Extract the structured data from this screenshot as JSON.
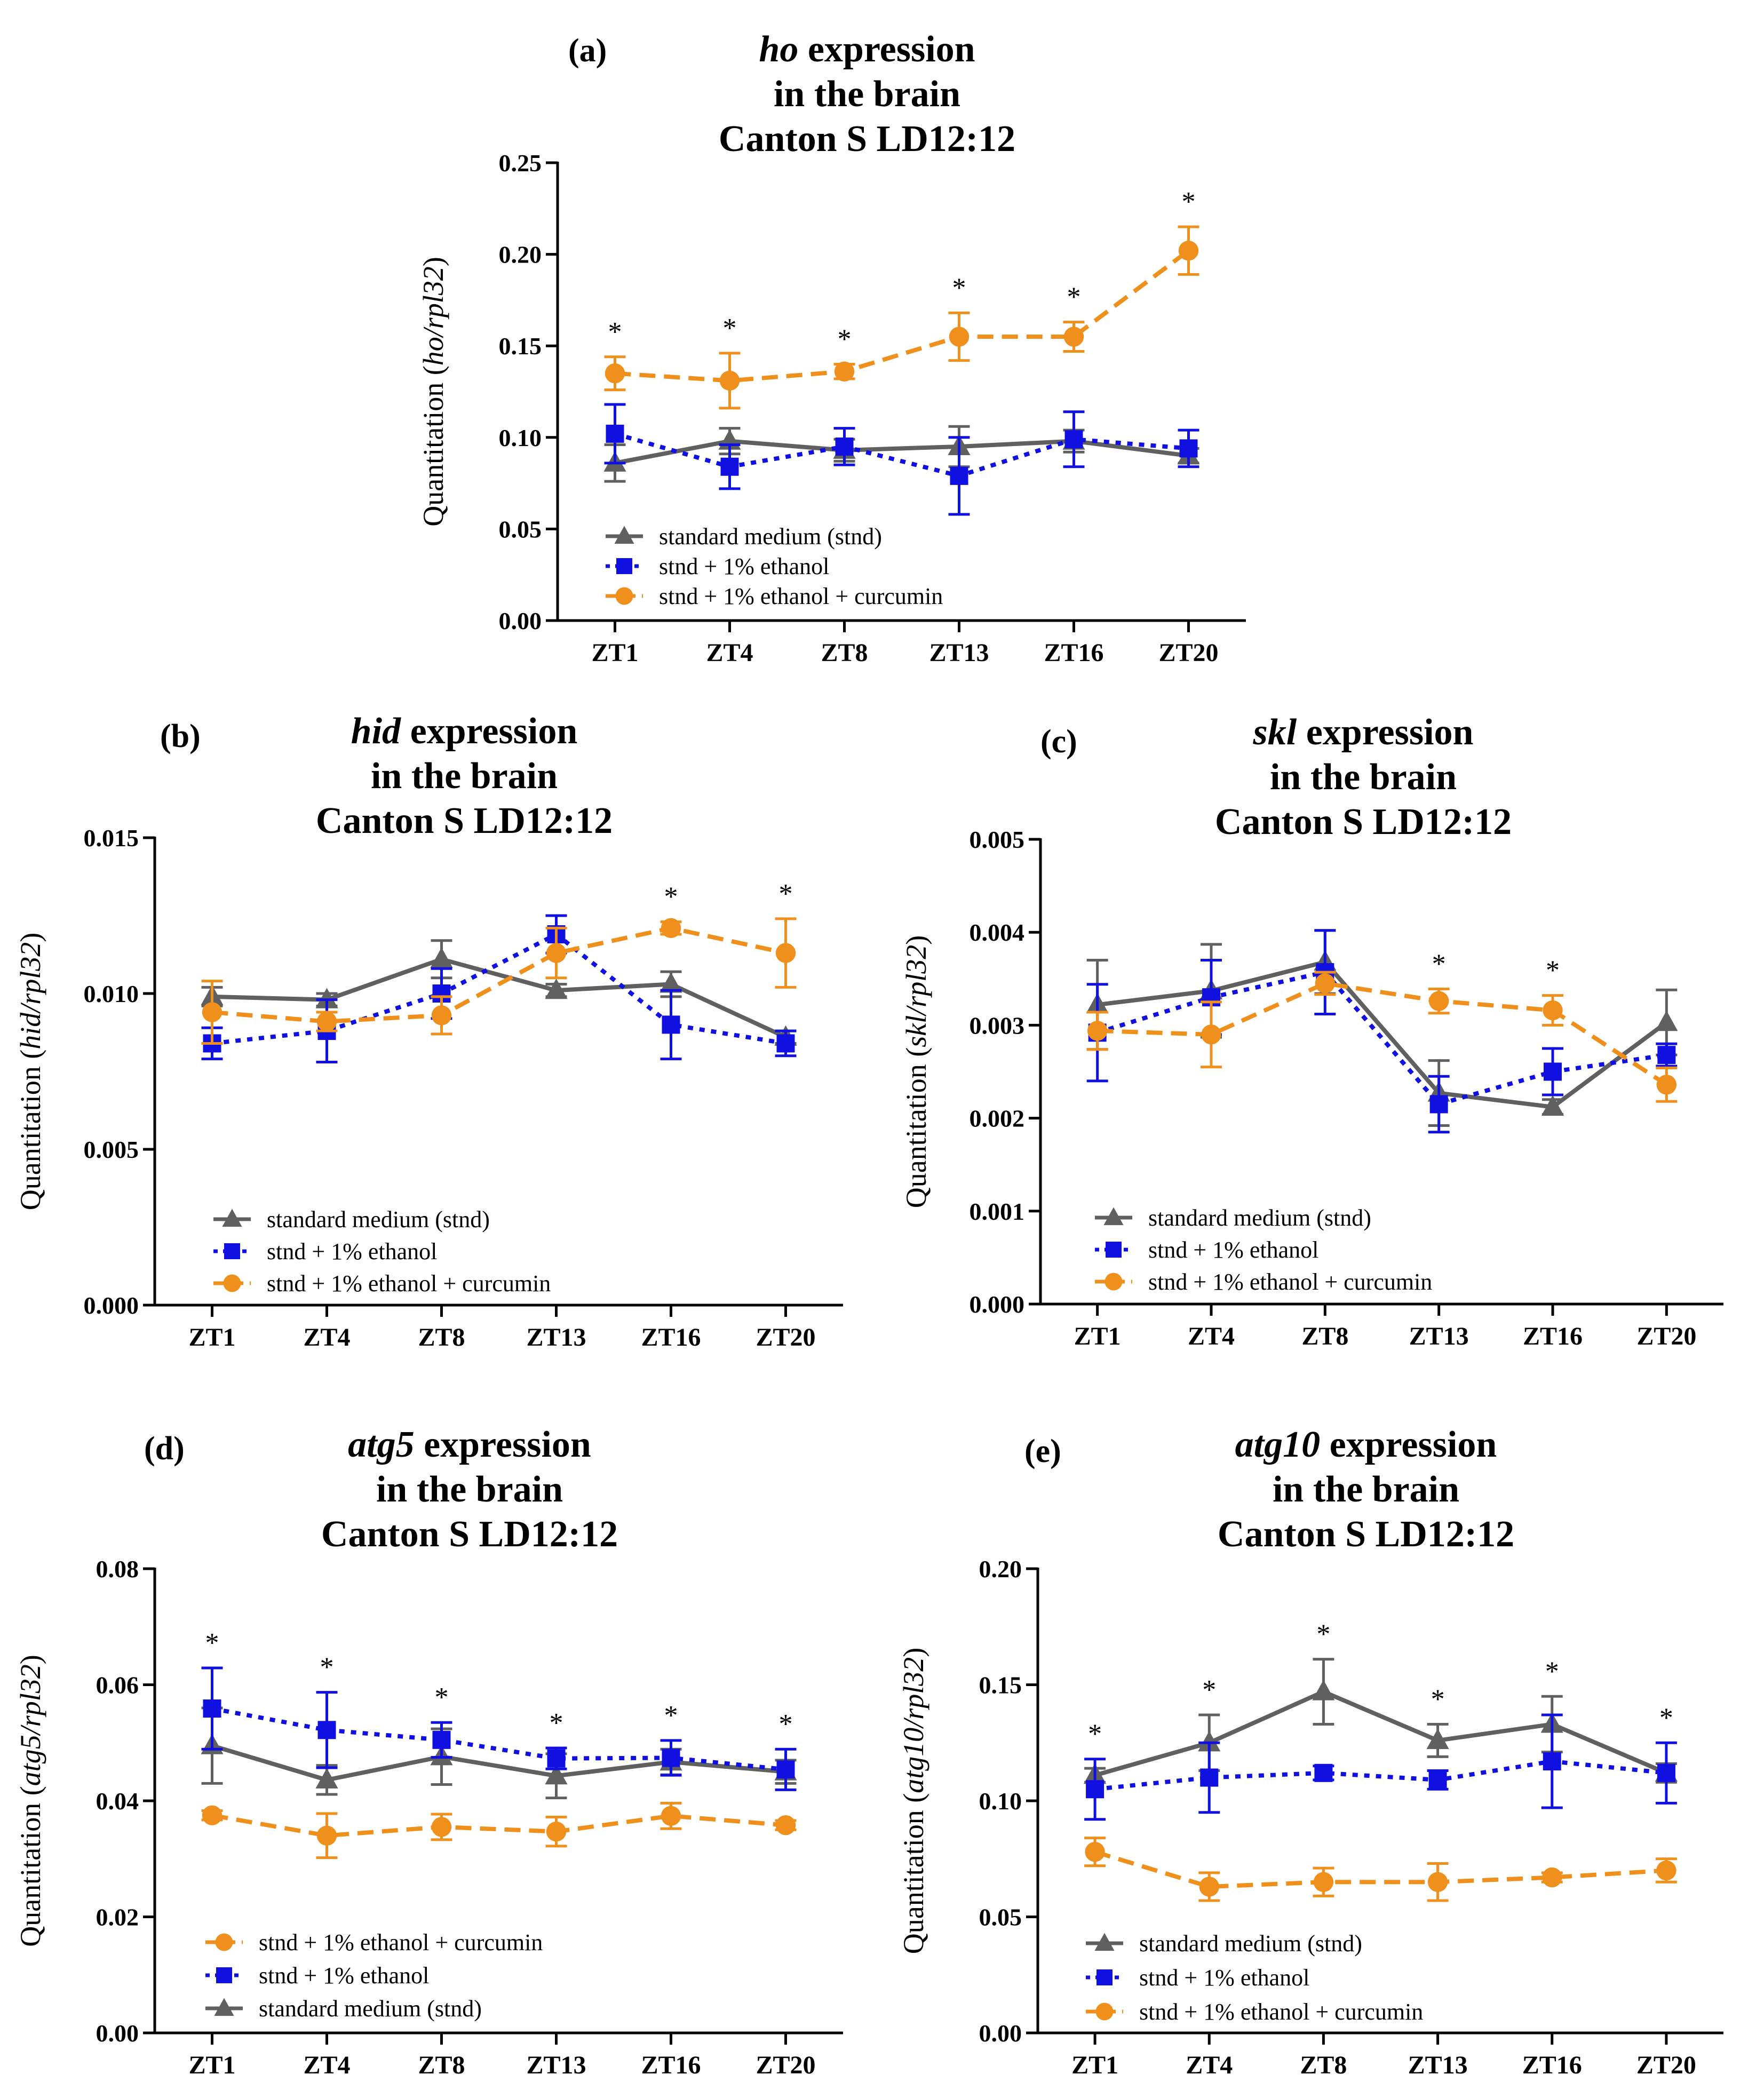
{
  "figure": {
    "x_categories": [
      "ZT1",
      "ZT4",
      "ZT8",
      "ZT13",
      "ZT16",
      "ZT20"
    ],
    "series_styles": {
      "stnd": {
        "color": "#606060",
        "marker": "triangle",
        "dash": "solid"
      },
      "ethanol": {
        "color": "#1010e0",
        "marker": "square",
        "dash": "dotted"
      },
      "curcumin": {
        "color": "#f0901c",
        "marker": "circle",
        "dash": "dashed"
      }
    }
  },
  "chart_data": [
    {
      "panel": "(a)",
      "type": "line",
      "title": {
        "gene": "ho",
        "rest1": " expression",
        "line2": "in the brain",
        "line3": "Canton S LD12:12"
      },
      "ylabel": {
        "pre": "Quantitation (",
        "gene": "ho/rpl32",
        "post": ")"
      },
      "ylim": [
        0,
        0.25
      ],
      "yticks": [
        "0.00",
        "0.05",
        "0.10",
        "0.15",
        "0.20",
        "0.25"
      ],
      "ytick_values": [
        0,
        0.05,
        0.1,
        0.15,
        0.2,
        0.25
      ],
      "categories": [
        "ZT1",
        "ZT4",
        "ZT8",
        "ZT13",
        "ZT16",
        "ZT20"
      ],
      "significance": [
        "*",
        "*",
        "*",
        "*",
        "*",
        "*"
      ],
      "legend": [
        "standard medium (stnd)",
        "stnd + 1% ethanol",
        "stnd + 1% ethanol + curcumin"
      ],
      "legend_order": [
        "stnd",
        "ethanol",
        "curcumin"
      ],
      "series": [
        {
          "key": "stnd",
          "name": "standard medium (stnd)",
          "values": [
            0.086,
            0.098,
            0.093,
            0.095,
            0.098,
            0.09
          ],
          "errors": [
            0.01,
            0.007,
            0.006,
            0.011,
            0.006,
            0.004
          ]
        },
        {
          "key": "ethanol",
          "name": "stnd + 1% ethanol",
          "values": [
            0.102,
            0.084,
            0.095,
            0.079,
            0.099,
            0.094
          ],
          "errors": [
            0.016,
            0.012,
            0.01,
            0.021,
            0.015,
            0.01
          ]
        },
        {
          "key": "curcumin",
          "name": "stnd + 1% ethanol + curcumin",
          "values": [
            0.135,
            0.131,
            0.136,
            0.155,
            0.155,
            0.202
          ],
          "errors": [
            0.009,
            0.015,
            0.004,
            0.013,
            0.008,
            0.013
          ]
        }
      ]
    },
    {
      "panel": "(b)",
      "type": "line",
      "title": {
        "gene": "hid",
        "rest1": " expression",
        "line2": "in the brain",
        "line3": "Canton S LD12:12"
      },
      "ylabel": {
        "pre": "Quantitation (",
        "gene": "hid/rpl32",
        "post": ")"
      },
      "ylim": [
        0,
        0.015
      ],
      "yticks": [
        "0.000",
        "0.005",
        "0.010",
        "0.015"
      ],
      "ytick_values": [
        0,
        0.005,
        0.01,
        0.015
      ],
      "categories": [
        "ZT1",
        "ZT4",
        "ZT8",
        "ZT13",
        "ZT16",
        "ZT20"
      ],
      "significance": [
        "",
        "",
        "",
        "",
        "*",
        "*"
      ],
      "legend": [
        "standard medium (stnd)",
        "stnd + 1% ethanol",
        "stnd + 1% ethanol + curcumin"
      ],
      "legend_order": [
        "stnd",
        "ethanol",
        "curcumin"
      ],
      "series": [
        {
          "key": "stnd",
          "name": "standard medium (stnd)",
          "values": [
            0.0099,
            0.0098,
            0.0111,
            0.0101,
            0.0103,
            0.0086
          ],
          "errors": [
            0.0003,
            0.0002,
            0.0006,
            0.0002,
            0.0004,
            0.0002
          ]
        },
        {
          "key": "ethanol",
          "name": "stnd + 1% ethanol",
          "values": [
            0.0084,
            0.0088,
            0.01,
            0.0119,
            0.009,
            0.0084
          ],
          "errors": [
            0.0005,
            0.001,
            0.0008,
            0.0006,
            0.0011,
            0.0004
          ]
        },
        {
          "key": "curcumin",
          "name": "stnd + 1% ethanol + curcumin",
          "values": [
            0.0094,
            0.0091,
            0.0093,
            0.0113,
            0.0121,
            0.0113
          ],
          "errors": [
            0.001,
            0.0003,
            0.0006,
            0.0008,
            0.0002,
            0.0011
          ]
        }
      ]
    },
    {
      "panel": "(c)",
      "type": "line",
      "title": {
        "gene": "skl",
        "rest1": " expression",
        "line2": "in the brain",
        "line3": "Canton S LD12:12"
      },
      "ylabel": {
        "pre": "Quantitation (",
        "gene": "skl/rpl32",
        "post": ")"
      },
      "ylim": [
        0,
        0.005
      ],
      "yticks": [
        "0.000",
        "0.001",
        "0.002",
        "0.003",
        "0.004",
        "0.005"
      ],
      "ytick_values": [
        0,
        0.001,
        0.002,
        0.003,
        0.004,
        0.005
      ],
      "categories": [
        "ZT1",
        "ZT4",
        "ZT8",
        "ZT13",
        "ZT16",
        "ZT20"
      ],
      "significance": [
        "",
        "",
        "",
        "*",
        "*",
        ""
      ],
      "legend": [
        "standard medium (stnd)",
        "stnd + 1% ethanol",
        "stnd + 1% ethanol + curcumin"
      ],
      "legend_order": [
        "stnd",
        "ethanol",
        "curcumin"
      ],
      "series": [
        {
          "key": "stnd",
          "name": "standard medium (stnd)",
          "values": [
            0.00322,
            0.00337,
            0.00368,
            0.00227,
            0.00212,
            0.00303
          ],
          "errors": [
            0.00048,
            0.0005,
            0.00034,
            0.00035,
            8e-05,
            0.00035
          ]
        },
        {
          "key": "ethanol",
          "name": "stnd + 1% ethanol",
          "values": [
            0.00292,
            0.0033,
            0.00357,
            0.00215,
            0.0025,
            0.00268
          ],
          "errors": [
            0.00052,
            0.0004,
            0.00045,
            0.0003,
            0.00025,
            0.00012
          ]
        },
        {
          "key": "curcumin",
          "name": "stnd + 1% ethanol + curcumin",
          "values": [
            0.00294,
            0.0029,
            0.00345,
            0.00326,
            0.00316,
            0.00236
          ],
          "errors": [
            0.0002,
            0.00035,
            0.00012,
            0.00013,
            0.00016,
            0.00018
          ]
        }
      ]
    },
    {
      "panel": "(d)",
      "type": "line",
      "title": {
        "gene": "atg5",
        "rest1": " expression",
        "line2": "in the brain",
        "line3": "Canton S LD12:12"
      },
      "ylabel": {
        "pre": "Quantitation (",
        "gene": "atg5/rpl32",
        "post": ")"
      },
      "ylim": [
        0,
        0.08
      ],
      "yticks": [
        "0.00",
        "0.02",
        "0.04",
        "0.06",
        "0.08"
      ],
      "ytick_values": [
        0,
        0.02,
        0.04,
        0.06,
        0.08
      ],
      "categories": [
        "ZT1",
        "ZT4",
        "ZT8",
        "ZT13",
        "ZT16",
        "ZT20"
      ],
      "significance": [
        "*",
        "*",
        "*",
        "*",
        "*",
        "*"
      ],
      "legend": [
        "stnd + 1% ethanol + curcumin",
        "stnd + 1% ethanol",
        "standard medium (stnd)"
      ],
      "legend_order": [
        "curcumin",
        "ethanol",
        "stnd"
      ],
      "series": [
        {
          "key": "stnd",
          "name": "standard medium (stnd)",
          "values": [
            0.0495,
            0.0436,
            0.0476,
            0.0443,
            0.0467,
            0.045
          ],
          "errors": [
            0.0065,
            0.0025,
            0.0048,
            0.0038,
            0.0022,
            0.002
          ]
        },
        {
          "key": "ethanol",
          "name": "stnd + 1% ethanol",
          "values": [
            0.0559,
            0.0522,
            0.0505,
            0.0473,
            0.0474,
            0.0454
          ],
          "errors": [
            0.007,
            0.0065,
            0.003,
            0.0018,
            0.003,
            0.0035
          ]
        },
        {
          "key": "curcumin",
          "name": "stnd + 1% ethanol + curcumin",
          "values": [
            0.0375,
            0.034,
            0.0355,
            0.0347,
            0.0374,
            0.0358
          ],
          "errors": [
            0.0008,
            0.0038,
            0.0022,
            0.0025,
            0.0022,
            0.0008
          ]
        }
      ]
    },
    {
      "panel": "(e)",
      "type": "line",
      "title": {
        "gene": "atg10",
        "rest1": " expression",
        "line2": "in the brain",
        "line3": "Canton S LD12:12"
      },
      "ylabel": {
        "pre": "Quantitation (",
        "gene": "atg10/rpl32",
        "post": ")"
      },
      "ylim": [
        0,
        0.2
      ],
      "yticks": [
        "0.00",
        "0.05",
        "0.10",
        "0.15",
        "0.20"
      ],
      "ytick_values": [
        0,
        0.05,
        0.1,
        0.15,
        0.2
      ],
      "categories": [
        "ZT1",
        "ZT4",
        "ZT8",
        "ZT13",
        "ZT16",
        "ZT20"
      ],
      "significance": [
        "*",
        "*",
        "*",
        "*",
        "*",
        "*"
      ],
      "legend": [
        "standard medium (stnd)",
        "stnd + 1% ethanol",
        "stnd + 1% ethanol + curcumin"
      ],
      "legend_order": [
        "stnd",
        "ethanol",
        "curcumin"
      ],
      "series": [
        {
          "key": "stnd",
          "name": "standard medium (stnd)",
          "values": [
            0.111,
            0.125,
            0.147,
            0.126,
            0.133,
            0.112
          ],
          "errors": [
            0.003,
            0.012,
            0.014,
            0.007,
            0.012,
            0.004
          ]
        },
        {
          "key": "ethanol",
          "name": "stnd + 1% ethanol",
          "values": [
            0.105,
            0.11,
            0.112,
            0.109,
            0.117,
            0.112
          ],
          "errors": [
            0.013,
            0.015,
            0.003,
            0.004,
            0.02,
            0.013
          ]
        },
        {
          "key": "curcumin",
          "name": "stnd + 1% ethanol + curcumin",
          "values": [
            0.078,
            0.063,
            0.065,
            0.065,
            0.067,
            0.07
          ],
          "errors": [
            0.006,
            0.006,
            0.006,
            0.008,
            0.002,
            0.005
          ]
        }
      ]
    }
  ]
}
